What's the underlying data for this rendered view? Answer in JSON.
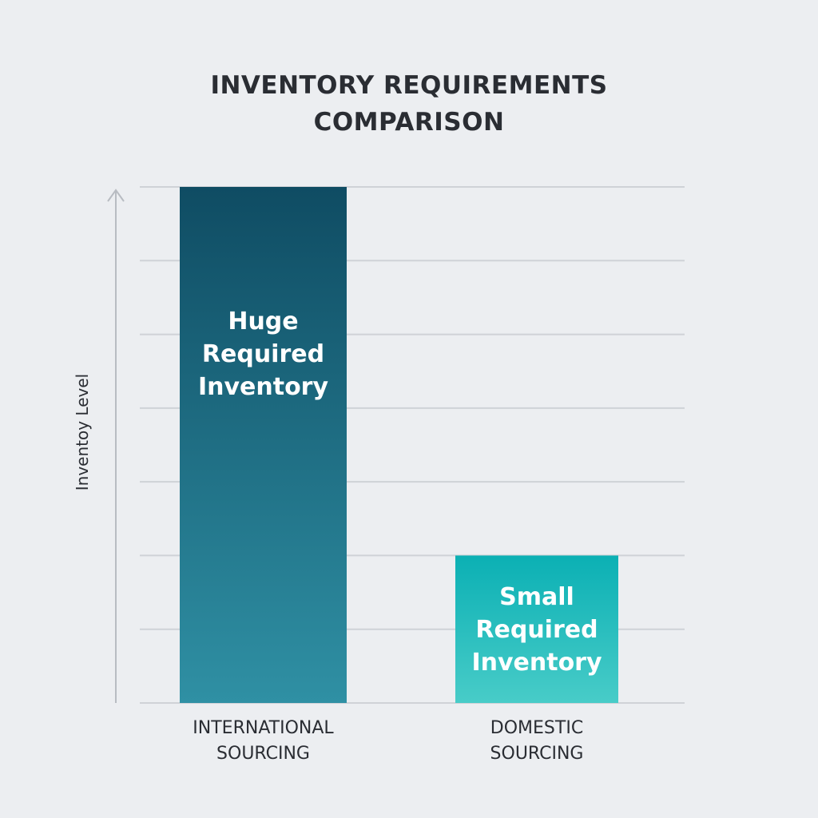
{
  "chart_data": {
    "type": "bar",
    "title_lines": [
      "INVENTORY REQUIREMENTS",
      "COMPARISON"
    ],
    "ylabel": "Inventoy Level",
    "xlabel": "",
    "categories": [
      [
        "INTERNATIONAL",
        "SOURCING"
      ],
      [
        "DOMESTIC",
        "SOURCING"
      ]
    ],
    "values": [
      7,
      2
    ],
    "data_labels": [
      [
        "Huge",
        "Required",
        "Inventory"
      ],
      [
        "Small",
        "Required",
        "Inventory"
      ]
    ],
    "ylim": [
      0,
      7
    ],
    "ytick_labels": "none",
    "grid": true,
    "legend": "none",
    "colors": {
      "bar1_top": "#0f4c63",
      "bar1_bottom": "#2f90a4",
      "bar2_top": "#0bb0b4",
      "bar2_bottom": "#48ccc8",
      "grid": "#cfd2d7",
      "axis": "#b8bcc2",
      "text": "#2a2d33"
    }
  }
}
